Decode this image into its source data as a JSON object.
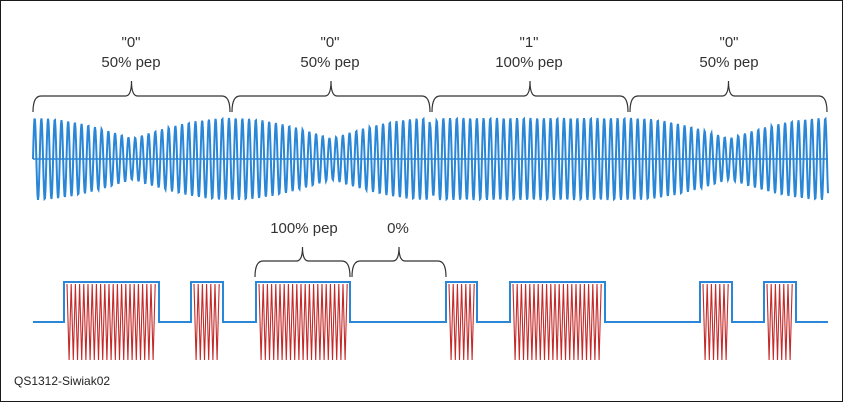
{
  "colors": {
    "frame": "#1a1a1a",
    "brace": "#333333",
    "carrier": "#2a86d6",
    "baseline": "#2a6fb0",
    "pulse": "#2a86d6",
    "burst": "#c42a2a",
    "text": "#333333"
  },
  "top_segments": [
    {
      "bit": "\"0\"",
      "level": "50% pep"
    },
    {
      "bit": "\"0\"",
      "level": "50% pep"
    },
    {
      "bit": "\"1\"",
      "level": "100% pep"
    },
    {
      "bit": "\"0\"",
      "level": "50% pep"
    }
  ],
  "bottom_labels": {
    "on": "100% pep",
    "off": "0%"
  },
  "caption": "QS1312-Siwiak02"
}
